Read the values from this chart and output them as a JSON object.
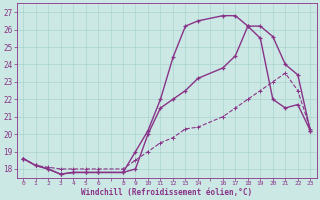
{
  "background_color": "#cce8e4",
  "grid_color": "#aad4d0",
  "line_color": "#883388",
  "xlabel": "Windchill (Refroidissement éolien,°C)",
  "ylabel_ticks": [
    18,
    19,
    20,
    21,
    22,
    23,
    24,
    25,
    26,
    27
  ],
  "xtick_labels": [
    "0",
    "1",
    "2",
    "3",
    "4",
    "5",
    "6",
    "",
    "8",
    "9",
    "10",
    "11",
    "12",
    "13",
    "14",
    "",
    "16",
    "17",
    "18",
    "19",
    "20",
    "21",
    "22",
    "23"
  ],
  "xtick_positions": [
    0,
    1,
    2,
    3,
    4,
    5,
    6,
    7,
    8,
    9,
    10,
    11,
    12,
    13,
    14,
    15,
    16,
    17,
    18,
    19,
    20,
    21,
    22,
    23
  ],
  "line1_x": [
    0,
    1,
    2,
    3,
    4,
    5,
    6,
    8,
    9,
    10,
    11,
    12,
    13,
    14,
    16,
    17,
    18,
    19,
    20,
    21,
    22,
    23
  ],
  "line1_y": [
    18.6,
    18.2,
    18.0,
    17.7,
    17.8,
    17.8,
    17.8,
    17.8,
    19.0,
    20.2,
    22.0,
    24.4,
    26.2,
    26.5,
    26.8,
    26.8,
    26.2,
    25.5,
    22.0,
    21.5,
    21.7,
    20.2
  ],
  "line2_x": [
    0,
    1,
    2,
    3,
    4,
    5,
    6,
    8,
    9,
    10,
    11,
    12,
    13,
    14,
    16,
    17,
    18,
    19,
    20,
    21,
    22,
    23
  ],
  "line2_y": [
    18.6,
    18.2,
    18.0,
    17.7,
    17.8,
    17.8,
    17.8,
    17.8,
    18.0,
    20.0,
    21.5,
    22.0,
    22.5,
    23.2,
    23.8,
    24.5,
    26.2,
    26.2,
    25.6,
    24.0,
    23.4,
    20.2
  ],
  "line3_x": [
    0,
    1,
    2,
    3,
    4,
    5,
    6,
    8,
    9,
    10,
    11,
    12,
    13,
    14,
    16,
    17,
    18,
    19,
    20,
    21,
    22,
    23
  ],
  "line3_y": [
    18.6,
    18.2,
    18.1,
    18.0,
    18.0,
    18.0,
    18.0,
    18.0,
    18.5,
    19.0,
    19.5,
    19.8,
    20.3,
    20.4,
    21.0,
    21.5,
    22.0,
    22.5,
    23.0,
    23.5,
    22.5,
    20.3
  ],
  "ylim": [
    17.5,
    27.5
  ],
  "xlim": [
    -0.5,
    23.5
  ],
  "figsize": [
    3.2,
    2.0
  ],
  "dpi": 100
}
